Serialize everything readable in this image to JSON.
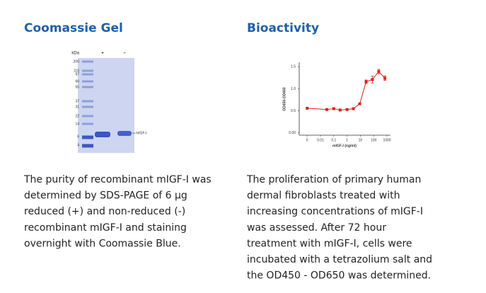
{
  "left": {
    "title": "Coomassie Gel",
    "gel": {
      "unit": "kDa",
      "lanes": [
        "+",
        "–"
      ],
      "markers": [
        "200",
        "116",
        "97",
        "66",
        "55",
        "37",
        "31",
        "22",
        "14",
        "6",
        "4"
      ],
      "band_label": "mIGF-I"
    },
    "caption": [
      "The purity of recombinant mIGF-I was",
      "determined by SDS-PAGE of 6 µg",
      "reduced (+) and non-reduced (-)",
      "recombinant mIGF-I and staining",
      "overnight with Coomassie Blue."
    ]
  },
  "right": {
    "title": "Bioactivity",
    "chart_data": {
      "type": "line",
      "x_label": "mIGF-I (ng/ml)",
      "y_label": "OD450-OD650",
      "x_scale": "log",
      "xlim": [
        0,
        1000
      ],
      "xticks": [
        0,
        0.01,
        0.1,
        1,
        10,
        100,
        1000
      ],
      "ylim": [
        -0.05,
        1.6
      ],
      "yticks": [
        {
          "value": 0,
          "label": "0.00"
        },
        0.5,
        {
          "value": 1,
          "label": "1.0"
        },
        1.5
      ],
      "series": [
        {
          "color": "#e0201c",
          "x": [
            0,
            0.03,
            0.1,
            0.3,
            1,
            3,
            9,
            27,
            80,
            240,
            700
          ],
          "values": [
            0.56,
            0.53,
            0.55,
            0.52,
            0.53,
            0.55,
            0.66,
            1.16,
            1.21,
            1.39,
            1.24
          ],
          "errors": [
            null,
            null,
            null,
            null,
            null,
            null,
            null,
            0.04,
            0.08,
            0.05,
            0.05
          ]
        }
      ]
    },
    "caption": [
      "The proliferation of primary human",
      "dermal fibroblasts treated with",
      "increasing concentrations of mIGF-I",
      "was assessed. After 72 hour",
      "treatment with mIGF-I, cells were",
      "incubated with a tetrazolium salt and",
      "the OD450 - OD650 was determined."
    ]
  }
}
